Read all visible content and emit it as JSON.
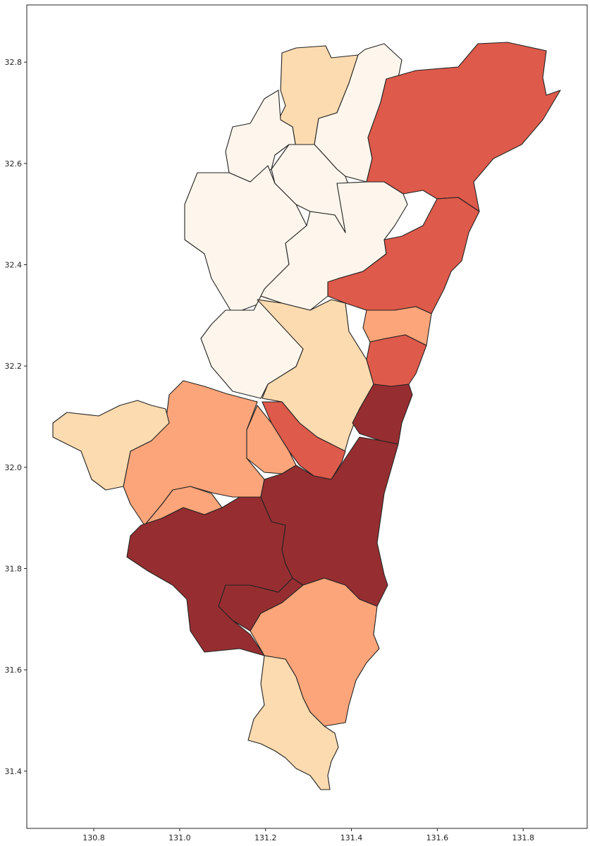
{
  "chart_data": {
    "type": "map",
    "xlim": [
      130.644,
      131.949
    ],
    "ylim": [
      31.287,
      32.913
    ],
    "xticks": [
      130.8,
      {
        "value": 131,
        "label": "131.0"
      },
      131.2,
      131.4,
      131.6,
      131.8
    ],
    "yticks": [
      31.4,
      31.6,
      31.8,
      {
        "value": 32,
        "label": "32.0"
      },
      32.2,
      32.4,
      32.6,
      32.8
    ]
  }
}
